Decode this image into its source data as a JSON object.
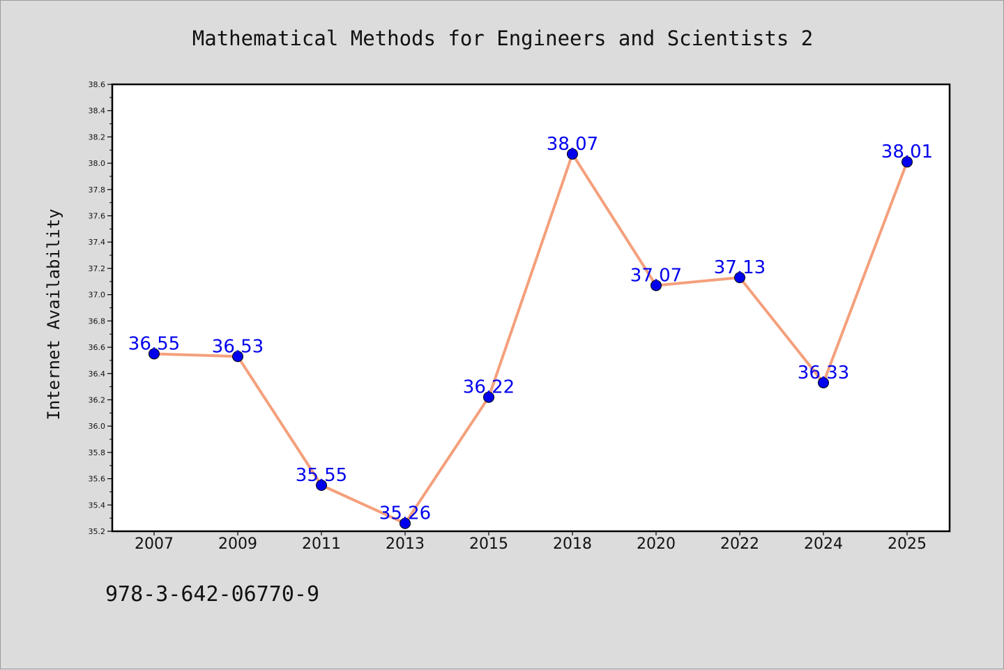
{
  "footer_text": "978-3-642-06770-9",
  "chart_data": {
    "type": "line",
    "title": "Mathematical Methods for Engineers and Scientists 2",
    "xlabel": "",
    "ylabel": "Internet Availability",
    "categories": [
      "2007",
      "2009",
      "2011",
      "2013",
      "2015",
      "2018",
      "2020",
      "2022",
      "2024",
      "2025"
    ],
    "values": [
      36.55,
      36.53,
      35.55,
      35.26,
      36.22,
      38.07,
      37.07,
      37.13,
      36.33,
      38.01
    ],
    "labels": [
      "36.55",
      "36.53",
      "35.55",
      "35.26",
      "36.22",
      "38.07",
      "37.07",
      "37.13",
      "36.33",
      "38.01"
    ],
    "ylim": [
      35.2,
      38.6
    ],
    "yticks": [
      "35.2",
      "35.4",
      "35.6",
      "35.8",
      "36.0",
      "36.2",
      "36.4",
      "36.6",
      "36.8",
      "37.0",
      "37.2",
      "37.4",
      "37.6",
      "37.8",
      "38.0",
      "38.2",
      "38.4",
      "38.6"
    ],
    "grid": false,
    "legend": "none",
    "colors": {
      "line": "#f4a07c",
      "marker": "#0000ee",
      "label": "#0000ee",
      "plot_bg": "#ffffff",
      "page_bg": "#dcdcdc"
    }
  }
}
